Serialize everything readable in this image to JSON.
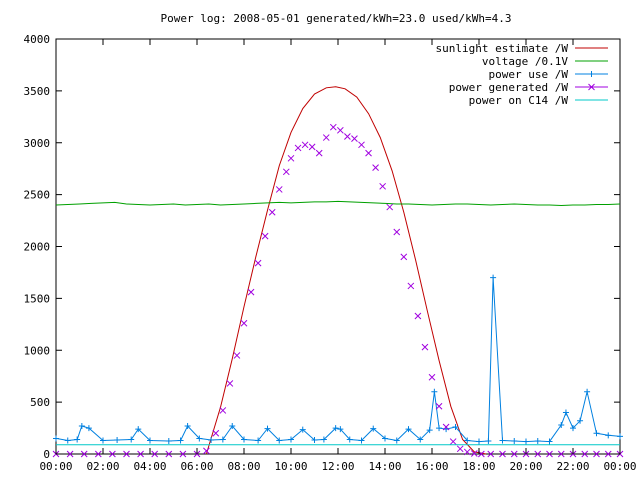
{
  "chart_data": {
    "type": "line",
    "title": "Power log: 2008-05-01 generated/kWh=23.0 used/kWh=4.3",
    "xlabel": "",
    "ylabel": "",
    "xlim": [
      0,
      24
    ],
    "ylim": [
      0,
      4000
    ],
    "grid": false,
    "legend_position": "top-right",
    "x_tick_values": [
      0,
      2,
      4,
      6,
      8,
      10,
      12,
      14,
      16,
      18,
      20,
      22,
      24
    ],
    "x_tick_labels": [
      "00:00",
      "02:00",
      "04:00",
      "06:00",
      "08:00",
      "10:00",
      "12:00",
      "14:00",
      "16:00",
      "18:00",
      "20:00",
      "22:00",
      "00:00"
    ],
    "y_tick_values": [
      0,
      500,
      1000,
      1500,
      2000,
      2500,
      3000,
      3500,
      4000
    ],
    "y_tick_labels": [
      "0",
      "500",
      "1000",
      "1500",
      "2000",
      "2500",
      "3000",
      "3500",
      "4000"
    ],
    "series": [
      {
        "name": "sunlight estimate /W",
        "color": "#c00000",
        "style": "line",
        "x": [
          6.4,
          7.0,
          7.5,
          8.0,
          8.5,
          9.0,
          9.5,
          10.0,
          10.5,
          11.0,
          11.5,
          11.9,
          12.3,
          12.8,
          13.3,
          13.8,
          14.3,
          14.8,
          15.3,
          15.8,
          16.3,
          16.8,
          17.3,
          17.8,
          18.3
        ],
        "y": [
          0,
          450,
          920,
          1420,
          1900,
          2350,
          2780,
          3100,
          3330,
          3470,
          3530,
          3540,
          3520,
          3440,
          3280,
          3050,
          2730,
          2330,
          1870,
          1380,
          900,
          460,
          140,
          20,
          0
        ]
      },
      {
        "name": "voltage /0.1V",
        "color": "#00a000",
        "style": "line",
        "x": [
          0,
          0.5,
          1,
          1.5,
          2,
          2.5,
          3,
          3.5,
          4,
          4.5,
          5,
          5.5,
          6,
          6.5,
          7,
          7.5,
          8,
          8.5,
          9,
          9.5,
          10,
          10.5,
          11,
          11.5,
          12,
          12.5,
          13,
          13.5,
          14,
          14.5,
          15,
          15.5,
          16,
          16.5,
          17,
          17.5,
          18,
          18.5,
          19,
          19.5,
          20,
          20.5,
          21,
          21.5,
          22,
          22.5,
          23,
          23.5,
          24
        ],
        "y": [
          2400,
          2405,
          2410,
          2415,
          2420,
          2425,
          2410,
          2405,
          2400,
          2405,
          2410,
          2400,
          2405,
          2410,
          2400,
          2405,
          2410,
          2415,
          2420,
          2425,
          2420,
          2425,
          2430,
          2430,
          2435,
          2430,
          2425,
          2420,
          2415,
          2410,
          2410,
          2405,
          2400,
          2405,
          2410,
          2410,
          2405,
          2400,
          2405,
          2410,
          2405,
          2400,
          2400,
          2395,
          2400,
          2400,
          2405,
          2405,
          2410
        ]
      },
      {
        "name": "power use /W",
        "color": "#0080e0",
        "style": "linepoints-plus",
        "x": [
          0,
          0.5,
          0.9,
          1.1,
          1.4,
          2,
          2.6,
          3.2,
          3.5,
          4,
          4.8,
          5.3,
          5.6,
          6.1,
          6.6,
          7.1,
          7.5,
          8,
          8.6,
          9,
          9.5,
          10,
          10.5,
          11,
          11.4,
          11.9,
          12.1,
          12.5,
          13,
          13.5,
          14,
          14.5,
          15,
          15.5,
          15.9,
          16.1,
          16.3,
          16.6,
          17,
          17.5,
          18,
          18.4,
          18.6,
          19,
          19.5,
          20,
          20.5,
          21,
          21.5,
          21.7,
          22,
          22.3,
          22.6,
          23,
          23.5,
          24
        ],
        "y": [
          150,
          130,
          140,
          270,
          250,
          130,
          135,
          140,
          240,
          130,
          125,
          130,
          270,
          150,
          135,
          140,
          270,
          140,
          130,
          245,
          130,
          140,
          235,
          135,
          140,
          250,
          240,
          140,
          130,
          245,
          150,
          130,
          240,
          140,
          230,
          600,
          250,
          240,
          260,
          130,
          120,
          125,
          1700,
          130,
          125,
          120,
          125,
          120,
          280,
          400,
          250,
          320,
          600,
          200,
          180,
          170
        ]
      },
      {
        "name": "power generated /W",
        "color": "#a000e0",
        "style": "points-x",
        "x": [
          0,
          0.6,
          1.2,
          1.8,
          2.4,
          3,
          3.6,
          4.2,
          4.8,
          5.4,
          6,
          6.4,
          6.8,
          7.1,
          7.4,
          7.7,
          8,
          8.3,
          8.6,
          8.9,
          9.2,
          9.5,
          9.8,
          10,
          10.3,
          10.6,
          10.9,
          11.2,
          11.5,
          11.8,
          12.1,
          12.4,
          12.7,
          13,
          13.3,
          13.6,
          13.9,
          14.2,
          14.5,
          14.8,
          15.1,
          15.4,
          15.7,
          16,
          16.3,
          16.6,
          16.9,
          17.2,
          17.5,
          17.8,
          18.1,
          18.5,
          19,
          19.5,
          20,
          20.5,
          21,
          21.5,
          22,
          22.5,
          23,
          23.5,
          24
        ],
        "y": [
          0,
          0,
          0,
          0,
          0,
          0,
          0,
          0,
          0,
          0,
          0,
          30,
          200,
          420,
          680,
          950,
          1260,
          1560,
          1840,
          2100,
          2330,
          2550,
          2720,
          2850,
          2950,
          2980,
          2960,
          2900,
          3050,
          3150,
          3120,
          3060,
          3040,
          2980,
          2900,
          2760,
          2580,
          2380,
          2140,
          1900,
          1620,
          1330,
          1030,
          740,
          460,
          260,
          120,
          50,
          20,
          5,
          0,
          0,
          0,
          0,
          0,
          0,
          0,
          0,
          0,
          0,
          0,
          0,
          0
        ]
      },
      {
        "name": "power on C14 /W",
        "color": "#00c8c8",
        "style": "line",
        "x": [
          0,
          2,
          4,
          6,
          8,
          10,
          12,
          14,
          16,
          18,
          20,
          22,
          24
        ],
        "y": [
          90,
          90,
          90,
          90,
          90,
          90,
          90,
          90,
          90,
          90,
          90,
          90,
          90
        ]
      }
    ]
  }
}
